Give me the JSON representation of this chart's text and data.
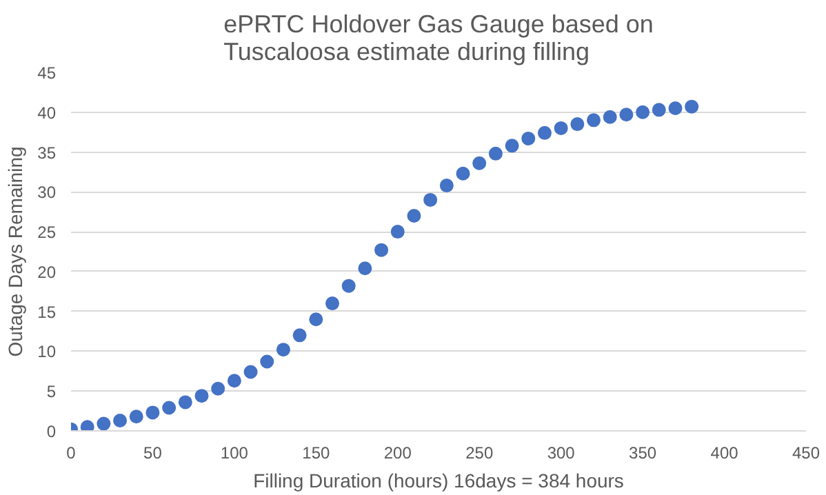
{
  "chart_data": {
    "type": "scatter",
    "title": "ePRTC Holdover Gas Gauge based on Tuscaloosa estimate during filling",
    "xlabel": "Filling Duration (hours) 16days = 384 hours",
    "ylabel": "Outage Days Remaining",
    "x": [
      0,
      10,
      20,
      30,
      40,
      50,
      60,
      70,
      80,
      90,
      100,
      110,
      120,
      130,
      140,
      150,
      160,
      170,
      180,
      190,
      200,
      210,
      220,
      230,
      240,
      250,
      260,
      270,
      280,
      290,
      300,
      310,
      320,
      330,
      340,
      350,
      360,
      370,
      380
    ],
    "series": [
      {
        "color": "#4472c4",
        "values": [
          0.2,
          0.5,
          0.9,
          1.3,
          1.8,
          2.3,
          2.9,
          3.6,
          4.4,
          5.3,
          6.3,
          7.4,
          8.7,
          10.2,
          12.0,
          14.0,
          16.0,
          18.2,
          20.4,
          22.7,
          25.0,
          27.0,
          29.0,
          30.8,
          32.3,
          33.6,
          34.8,
          35.8,
          36.7,
          37.4,
          38.0,
          38.5,
          39.0,
          39.4,
          39.7,
          40.0,
          40.3,
          40.5,
          40.7
        ]
      }
    ],
    "xlim": [
      0,
      450
    ],
    "xticks": [
      0,
      50,
      100,
      150,
      200,
      250,
      300,
      350,
      400,
      450
    ],
    "ylim": [
      0,
      45
    ],
    "yticks": [
      0,
      5,
      10,
      15,
      20,
      25,
      30,
      35,
      40,
      45
    ],
    "grid": "y",
    "marker": "circle"
  }
}
